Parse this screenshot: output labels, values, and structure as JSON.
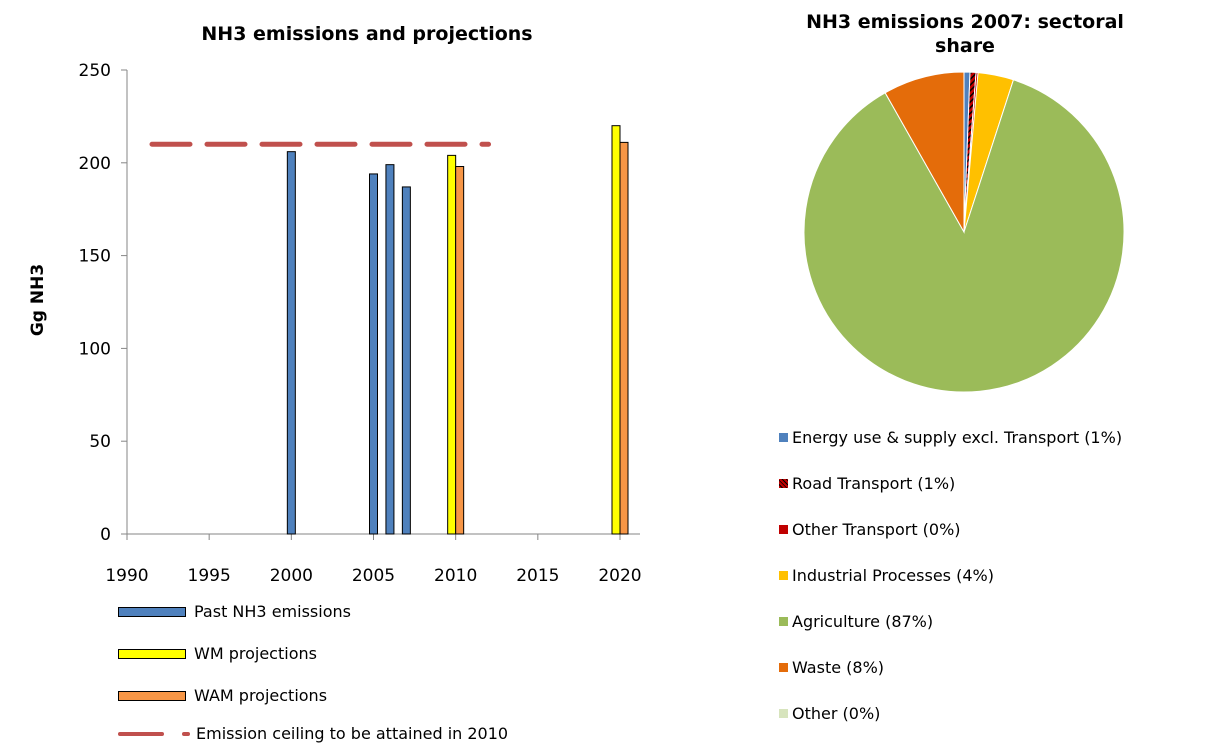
{
  "chart_data": [
    {
      "type": "bar",
      "title": "NH3 emissions and projections",
      "ylabel": "Gg NH3",
      "xlabel": "",
      "xlim": [
        1990,
        2020
      ],
      "ylim": [
        0,
        250
      ],
      "xticks": [
        "1990",
        "1995",
        "2000",
        "2005",
        "2010",
        "2015",
        "2020"
      ],
      "yticks": [
        "0",
        "50",
        "100",
        "150",
        "200",
        "250"
      ],
      "grid": false,
      "legend": "bottom",
      "series": [
        {
          "name": "Past NH3 emissions",
          "color": "#4f81bd",
          "points": [
            {
              "x": 2000,
              "y": 206
            },
            {
              "x": 2005,
              "y": 194
            },
            {
              "x": 2006,
              "y": 199
            },
            {
              "x": 2007,
              "y": 187
            }
          ]
        },
        {
          "name": "WM projections",
          "color": "#ffff00",
          "points": [
            {
              "x": 2010,
              "y": 204
            },
            {
              "x": 2020,
              "y": 220
            }
          ]
        },
        {
          "name": "WAM projections",
          "color": "#f79646",
          "points": [
            {
              "x": 2010,
              "y": 198
            },
            {
              "x": 2020,
              "y": 211
            }
          ]
        }
      ],
      "reference_line": {
        "name": "Emission ceiling to be attained in 2010",
        "y": 210,
        "x_range": [
          1990,
          2012
        ],
        "color": "#c0504d",
        "style": "dashed"
      }
    },
    {
      "type": "pie",
      "title": "NH3 emissions 2007: sectoral share",
      "legend": "bottom",
      "slices": [
        {
          "label": "Energy use & supply excl. Transport (1%)",
          "value": 0.6,
          "color": "#4f81bd"
        },
        {
          "label": "Road Transport (1%)",
          "value": 0.6,
          "color": "#c00000",
          "pattern": "hatched"
        },
        {
          "label": "Other Transport (0%)",
          "value": 0.2,
          "color": "#c00000"
        },
        {
          "label": "Industrial Processes (4%)",
          "value": 3.6,
          "color": "#ffc000"
        },
        {
          "label": "Agriculture  (87%)",
          "value": 86.8,
          "color": "#9bbb59"
        },
        {
          "label": "Waste (8%)",
          "value": 8.2,
          "color": "#e46c0a"
        },
        {
          "label": "Other (0%)",
          "value": 0.0,
          "color": "#d7e4bd"
        }
      ]
    }
  ]
}
